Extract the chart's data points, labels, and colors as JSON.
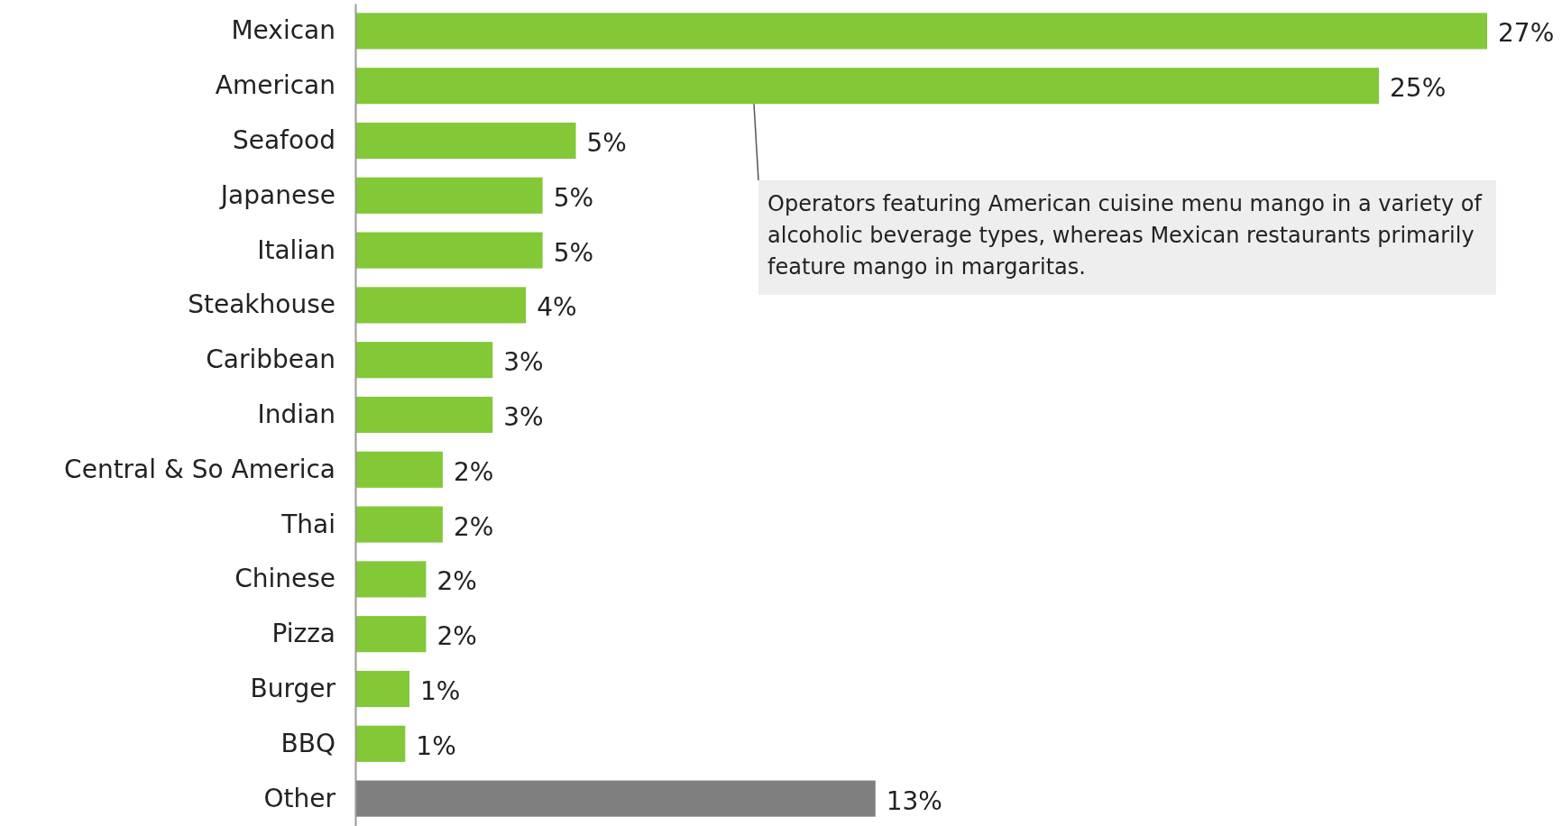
{
  "chart_data": {
    "type": "bar",
    "orientation": "horizontal",
    "categories": [
      "Mexican",
      "American",
      "Seafood",
      "Japanese",
      "Italian",
      "Steakhouse",
      "Caribbean",
      "Indian",
      "Central & So America",
      "Thai",
      "Chinese",
      "Pizza",
      "Burger",
      "BBQ",
      "Other"
    ],
    "values": [
      27.2,
      24.6,
      5.3,
      4.5,
      4.5,
      4.1,
      3.3,
      3.3,
      2.1,
      2.1,
      1.7,
      1.7,
      1.3,
      1.2,
      12.5
    ],
    "value_labels": [
      "27%",
      "25%",
      "5%",
      "5%",
      "5%",
      "4%",
      "3%",
      "3%",
      "2%",
      "2%",
      "2%",
      "2%",
      "1%",
      "1%",
      "13%"
    ],
    "colors": [
      "#82c837",
      "#82c837",
      "#82c837",
      "#82c837",
      "#82c837",
      "#82c837",
      "#82c837",
      "#82c837",
      "#82c837",
      "#82c837",
      "#82c837",
      "#82c837",
      "#82c837",
      "#82c837",
      "#7f7f7f"
    ],
    "annotations": [
      "Operators featuring American cuisine menu mango in a variety of alcoholic beverage types, whereas Mexican restaurants primarily feature mango in margaritas."
    ]
  }
}
